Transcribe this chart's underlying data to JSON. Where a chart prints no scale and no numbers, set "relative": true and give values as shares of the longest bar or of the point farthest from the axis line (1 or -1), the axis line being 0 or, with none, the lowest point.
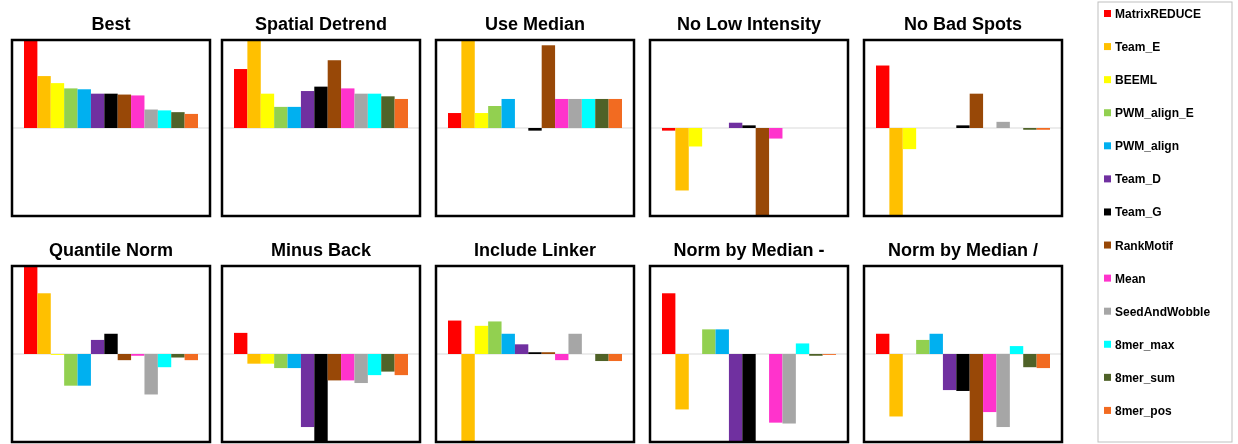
{
  "chart_data": [
    {
      "type": "bar",
      "title": "Best",
      "relative": true,
      "legend": "right",
      "categories": [
        null
      ],
      "series": [
        {
          "name": "MatrixREDUCE",
          "color": "#ff0000",
          "values": [
            1
          ]
        },
        {
          "name": "Team_E",
          "color": "#ffc000",
          "values": [
            0.59
          ]
        },
        {
          "name": "BEEML",
          "color": "#ffff00",
          "values": [
            0.51
          ]
        },
        {
          "name": "PWM_align_E",
          "color": "#92d050",
          "values": [
            0.45
          ]
        },
        {
          "name": "PWM_align",
          "color": "#00b0f0",
          "values": [
            0.44
          ]
        },
        {
          "name": "Team_D",
          "color": "#7030a0",
          "values": [
            0.39
          ]
        },
        {
          "name": "Team_G",
          "color": "#000000",
          "values": [
            0.39
          ]
        },
        {
          "name": "RankMotif",
          "color": "#984807",
          "values": [
            0.38
          ]
        },
        {
          "name": "Mean",
          "color": "#ff33cc",
          "values": [
            0.37
          ]
        },
        {
          "name": "SeedAndWobble",
          "color": "#a6a6a6",
          "values": [
            0.21
          ]
        },
        {
          "name": "8mer_max",
          "color": "#00ffff",
          "values": [
            0.2
          ]
        },
        {
          "name": "8mer_sum",
          "color": "#4f6228",
          "values": [
            0.18
          ]
        },
        {
          "name": "8mer_pos",
          "color": "#f26b21",
          "values": [
            0.16
          ]
        }
      ]
    },
    {
      "type": "bar",
      "title": "Spatial Detrend",
      "relative": true,
      "categories": [
        null
      ],
      "series": [
        {
          "color": "#ff0000",
          "values": [
            0.67
          ]
        },
        {
          "color": "#ffc000",
          "values": [
            1
          ]
        },
        {
          "color": "#ffff00",
          "values": [
            0.39
          ]
        },
        {
          "color": "#92d050",
          "values": [
            0.24
          ]
        },
        {
          "color": "#00b0f0",
          "values": [
            0.24
          ]
        },
        {
          "color": "#7030a0",
          "values": [
            0.42
          ]
        },
        {
          "color": "#000000",
          "values": [
            0.47
          ]
        },
        {
          "color": "#984807",
          "values": [
            0.77
          ]
        },
        {
          "color": "#ff33cc",
          "values": [
            0.45
          ]
        },
        {
          "color": "#a6a6a6",
          "values": [
            0.39
          ]
        },
        {
          "color": "#00ffff",
          "values": [
            0.39
          ]
        },
        {
          "color": "#4f6228",
          "values": [
            0.36
          ]
        },
        {
          "color": "#f26b21",
          "values": [
            0.33
          ]
        }
      ]
    },
    {
      "type": "bar",
      "title": "Use Median",
      "relative": true,
      "categories": [
        null
      ],
      "series": [
        {
          "color": "#ff0000",
          "values": [
            0.17
          ]
        },
        {
          "color": "#ffc000",
          "values": [
            1
          ]
        },
        {
          "color": "#ffff00",
          "values": [
            0.17
          ]
        },
        {
          "color": "#92d050",
          "values": [
            0.25
          ]
        },
        {
          "color": "#00b0f0",
          "values": [
            0.33
          ]
        },
        {
          "color": "#7030a0",
          "values": [
            0
          ]
        },
        {
          "color": "#000000",
          "values": [
            -0.03
          ]
        },
        {
          "color": "#984807",
          "values": [
            0.94
          ]
        },
        {
          "color": "#ff33cc",
          "values": [
            0.33
          ]
        },
        {
          "color": "#a6a6a6",
          "values": [
            0.33
          ]
        },
        {
          "color": "#00ffff",
          "values": [
            0.33
          ]
        },
        {
          "color": "#4f6228",
          "values": [
            0.33
          ]
        },
        {
          "color": "#f26b21",
          "values": [
            0.33
          ]
        }
      ]
    },
    {
      "type": "bar",
      "title": "No Low Intensity",
      "relative": true,
      "categories": [
        null
      ],
      "series": [
        {
          "color": "#ff0000",
          "values": [
            -0.03
          ]
        },
        {
          "color": "#ffc000",
          "values": [
            -0.71
          ]
        },
        {
          "color": "#ffff00",
          "values": [
            -0.21
          ]
        },
        {
          "color": "#92d050",
          "values": [
            0
          ]
        },
        {
          "color": "#00b0f0",
          "values": [
            0
          ]
        },
        {
          "color": "#7030a0",
          "values": [
            0.06
          ]
        },
        {
          "color": "#000000",
          "values": [
            0.03
          ]
        },
        {
          "color": "#984807",
          "values": [
            -1
          ]
        },
        {
          "color": "#ff33cc",
          "values": [
            -0.12
          ]
        },
        {
          "color": "#a6a6a6",
          "values": [
            0
          ]
        },
        {
          "color": "#00ffff",
          "values": [
            0
          ]
        },
        {
          "color": "#4f6228",
          "values": [
            0
          ]
        },
        {
          "color": "#f26b21",
          "values": [
            0
          ]
        }
      ]
    },
    {
      "type": "bar",
      "title": "No Bad Spots",
      "relative": true,
      "categories": [
        null
      ],
      "series": [
        {
          "color": "#ff0000",
          "values": [
            0.71
          ]
        },
        {
          "color": "#ffc000",
          "values": [
            -1
          ]
        },
        {
          "color": "#ffff00",
          "values": [
            -0.24
          ]
        },
        {
          "color": "#92d050",
          "values": [
            0
          ]
        },
        {
          "color": "#00b0f0",
          "values": [
            0
          ]
        },
        {
          "color": "#7030a0",
          "values": [
            0
          ]
        },
        {
          "color": "#000000",
          "values": [
            0.03
          ]
        },
        {
          "color": "#984807",
          "values": [
            0.39
          ]
        },
        {
          "color": "#ff33cc",
          "values": [
            0
          ]
        },
        {
          "color": "#a6a6a6",
          "values": [
            0.07
          ]
        },
        {
          "color": "#00ffff",
          "values": [
            0
          ]
        },
        {
          "color": "#4f6228",
          "values": [
            -0.02
          ]
        },
        {
          "color": "#f26b21",
          "values": [
            -0.02
          ]
        }
      ]
    },
    {
      "type": "bar",
      "title": "Quantile Norm",
      "relative": true,
      "categories": [
        null
      ],
      "series": [
        {
          "color": "#ff0000",
          "values": [
            1
          ]
        },
        {
          "color": "#ffc000",
          "values": [
            0.69
          ]
        },
        {
          "color": "#ffff00",
          "values": [
            -0.01
          ]
        },
        {
          "color": "#92d050",
          "values": [
            -0.36
          ]
        },
        {
          "color": "#00b0f0",
          "values": [
            -0.36
          ]
        },
        {
          "color": "#7030a0",
          "values": [
            0.16
          ]
        },
        {
          "color": "#000000",
          "values": [
            0.23
          ]
        },
        {
          "color": "#984807",
          "values": [
            -0.07
          ]
        },
        {
          "color": "#ff33cc",
          "values": [
            -0.02
          ]
        },
        {
          "color": "#a6a6a6",
          "values": [
            -0.46
          ]
        },
        {
          "color": "#00ffff",
          "values": [
            -0.15
          ]
        },
        {
          "color": "#4f6228",
          "values": [
            -0.04
          ]
        },
        {
          "color": "#f26b21",
          "values": [
            -0.07
          ]
        }
      ]
    },
    {
      "type": "bar",
      "title": "Minus Back",
      "relative": true,
      "categories": [
        null
      ],
      "series": [
        {
          "color": "#ff0000",
          "values": [
            0.24
          ]
        },
        {
          "color": "#ffc000",
          "values": [
            -0.11
          ]
        },
        {
          "color": "#ffff00",
          "values": [
            -0.11
          ]
        },
        {
          "color": "#92d050",
          "values": [
            -0.16
          ]
        },
        {
          "color": "#00b0f0",
          "values": [
            -0.16
          ]
        },
        {
          "color": "#7030a0",
          "values": [
            -0.83
          ]
        },
        {
          "color": "#000000",
          "values": [
            -1
          ]
        },
        {
          "color": "#984807",
          "values": [
            -0.3
          ]
        },
        {
          "color": "#ff33cc",
          "values": [
            -0.3
          ]
        },
        {
          "color": "#a6a6a6",
          "values": [
            -0.33
          ]
        },
        {
          "color": "#00ffff",
          "values": [
            -0.24
          ]
        },
        {
          "color": "#4f6228",
          "values": [
            -0.2
          ]
        },
        {
          "color": "#f26b21",
          "values": [
            -0.24
          ]
        }
      ]
    },
    {
      "type": "bar",
      "title": "Include Linker",
      "relative": true,
      "categories": [
        null
      ],
      "series": [
        {
          "color": "#ff0000",
          "values": [
            0.38
          ]
        },
        {
          "color": "#ffc000",
          "values": [
            -1
          ]
        },
        {
          "color": "#ffff00",
          "values": [
            0.32
          ]
        },
        {
          "color": "#92d050",
          "values": [
            0.37
          ]
        },
        {
          "color": "#00b0f0",
          "values": [
            0.23
          ]
        },
        {
          "color": "#7030a0",
          "values": [
            0.11
          ]
        },
        {
          "color": "#000000",
          "values": [
            0.02
          ]
        },
        {
          "color": "#984807",
          "values": [
            0.02
          ]
        },
        {
          "color": "#ff33cc",
          "values": [
            -0.07
          ]
        },
        {
          "color": "#a6a6a6",
          "values": [
            0.23
          ]
        },
        {
          "color": "#00ffff",
          "values": [
            0
          ]
        },
        {
          "color": "#4f6228",
          "values": [
            -0.08
          ]
        },
        {
          "color": "#f26b21",
          "values": [
            -0.08
          ]
        }
      ]
    },
    {
      "type": "bar",
      "title": "Norm by Median -",
      "relative": true,
      "categories": [
        null
      ],
      "series": [
        {
          "color": "#ff0000",
          "values": [
            0.69
          ]
        },
        {
          "color": "#ffc000",
          "values": [
            -0.63
          ]
        },
        {
          "color": "#ffff00",
          "values": [
            0
          ]
        },
        {
          "color": "#92d050",
          "values": [
            0.28
          ]
        },
        {
          "color": "#00b0f0",
          "values": [
            0.28
          ]
        },
        {
          "color": "#7030a0",
          "values": [
            -1
          ]
        },
        {
          "color": "#000000",
          "values": [
            -1
          ]
        },
        {
          "color": "#984807",
          "values": [
            0
          ]
        },
        {
          "color": "#ff33cc",
          "values": [
            -0.78
          ]
        },
        {
          "color": "#a6a6a6",
          "values": [
            -0.79
          ]
        },
        {
          "color": "#00ffff",
          "values": [
            0.12
          ]
        },
        {
          "color": "#4f6228",
          "values": [
            -0.02
          ]
        },
        {
          "color": "#f26b21",
          "values": [
            -0.01
          ]
        }
      ]
    },
    {
      "type": "bar",
      "title": "Norm by Median /",
      "relative": true,
      "categories": [
        null
      ],
      "series": [
        {
          "color": "#ff0000",
          "values": [
            0.23
          ]
        },
        {
          "color": "#ffc000",
          "values": [
            -0.71
          ]
        },
        {
          "color": "#ffff00",
          "values": [
            0
          ]
        },
        {
          "color": "#92d050",
          "values": [
            0.16
          ]
        },
        {
          "color": "#00b0f0",
          "values": [
            0.23
          ]
        },
        {
          "color": "#7030a0",
          "values": [
            -0.41
          ]
        },
        {
          "color": "#000000",
          "values": [
            -0.42
          ]
        },
        {
          "color": "#984807",
          "values": [
            -1
          ]
        },
        {
          "color": "#ff33cc",
          "values": [
            -0.66
          ]
        },
        {
          "color": "#a6a6a6",
          "values": [
            -0.83
          ]
        },
        {
          "color": "#00ffff",
          "values": [
            0.09
          ]
        },
        {
          "color": "#4f6228",
          "values": [
            -0.15
          ]
        },
        {
          "color": "#f26b21",
          "values": [
            -0.16
          ]
        }
      ]
    }
  ]
}
